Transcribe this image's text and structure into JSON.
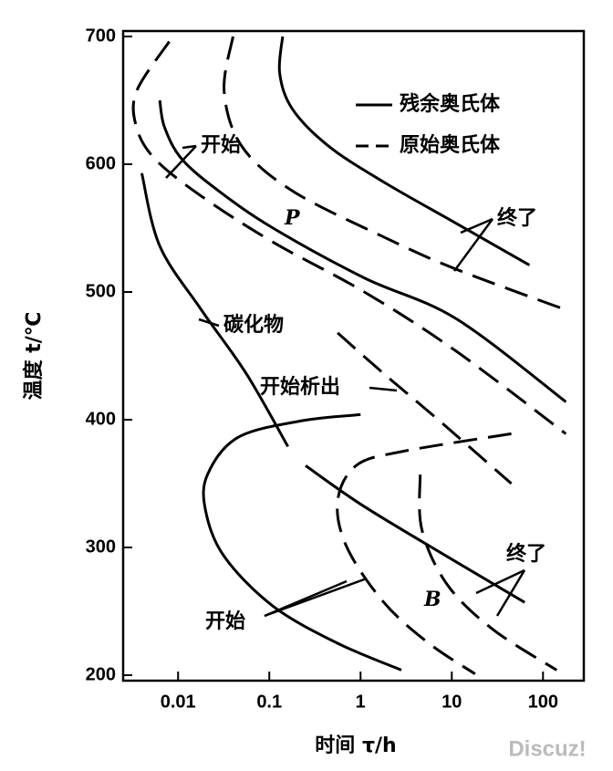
{
  "chart_data": {
    "type": "line",
    "xlabel": "时间 τ/h",
    "ylabel": "温度 t/℃",
    "xscale": "log",
    "xlim": [
      0.0025,
      280
    ],
    "xticks": [
      0.01,
      0.1,
      1,
      10,
      100
    ],
    "ylim": [
      200,
      700
    ],
    "yticks": [
      200,
      300,
      400,
      500,
      600,
      700
    ],
    "color": "#000000",
    "legend_position": "upper right",
    "legend": [
      {
        "name": "残余奥氏体",
        "dashed": false
      },
      {
        "name": "原始奥氏体",
        "dashed": true
      }
    ],
    "series": [
      {
        "dashed": false,
        "x": [
          0.0063,
          0.0071,
          0.011,
          0.028,
          0.11,
          1.1,
          11.2,
          178
        ],
        "values": [
          650,
          629,
          604,
          579,
          550,
          511,
          479,
          414
        ]
      },
      {
        "dashed": false,
        "x": [
          0.14,
          0.13,
          0.18,
          0.45,
          1.8,
          11,
          71
        ],
        "values": [
          700,
          671,
          643,
          614,
          586,
          554,
          521
        ]
      },
      {
        "dashed": true,
        "x": [
          0.008,
          0.0035,
          0.0035,
          0.0056,
          0.018,
          0.11,
          1.1,
          11,
          178
        ],
        "values": [
          696,
          657,
          629,
          604,
          575,
          539,
          500,
          454,
          389
        ]
      },
      {
        "dashed": true,
        "x": [
          0.04,
          0.032,
          0.05,
          0.18,
          1.8,
          11,
          178
        ],
        "values": [
          700,
          657,
          614,
          579,
          543,
          518,
          486
        ]
      },
      {
        "dashed": false,
        "x": [
          0.004,
          0.0063,
          0.018,
          0.056,
          0.16
        ],
        "values": [
          593,
          536,
          486,
          436,
          379
        ]
      },
      {
        "dashed": true,
        "x": [
          0.56,
          1.8,
          7.1,
          45
        ],
        "values": [
          468,
          436,
          400,
          350
        ]
      },
      {
        "dashed": false,
        "x": [
          1,
          0.22,
          0.045,
          0.021,
          0.02,
          0.032,
          0.11,
          0.56,
          2.8
        ],
        "values": [
          404,
          399,
          386,
          357,
          329,
          293,
          254,
          225,
          204
        ]
      },
      {
        "dashed": false,
        "x": [
          0.25,
          1.1,
          11,
          63
        ],
        "values": [
          364,
          332,
          289,
          257
        ]
      },
      {
        "dashed": true,
        "x": [
          45,
          2.8,
          0.89,
          0.56,
          0.71,
          1.8,
          5.6,
          18
        ],
        "values": [
          389,
          375,
          364,
          336,
          300,
          257,
          225,
          201
        ]
      },
      {
        "dashed": true,
        "x": [
          4.5,
          4.7,
          8.9,
          28,
          141
        ],
        "values": [
          357,
          314,
          271,
          236,
          204
        ]
      }
    ],
    "annotations": [
      "开始",
      "终了",
      "碳化物",
      "开始析出",
      "开始",
      "终了"
    ],
    "region_labels": [
      "P",
      "B"
    ],
    "watermark": "Discuz!"
  }
}
